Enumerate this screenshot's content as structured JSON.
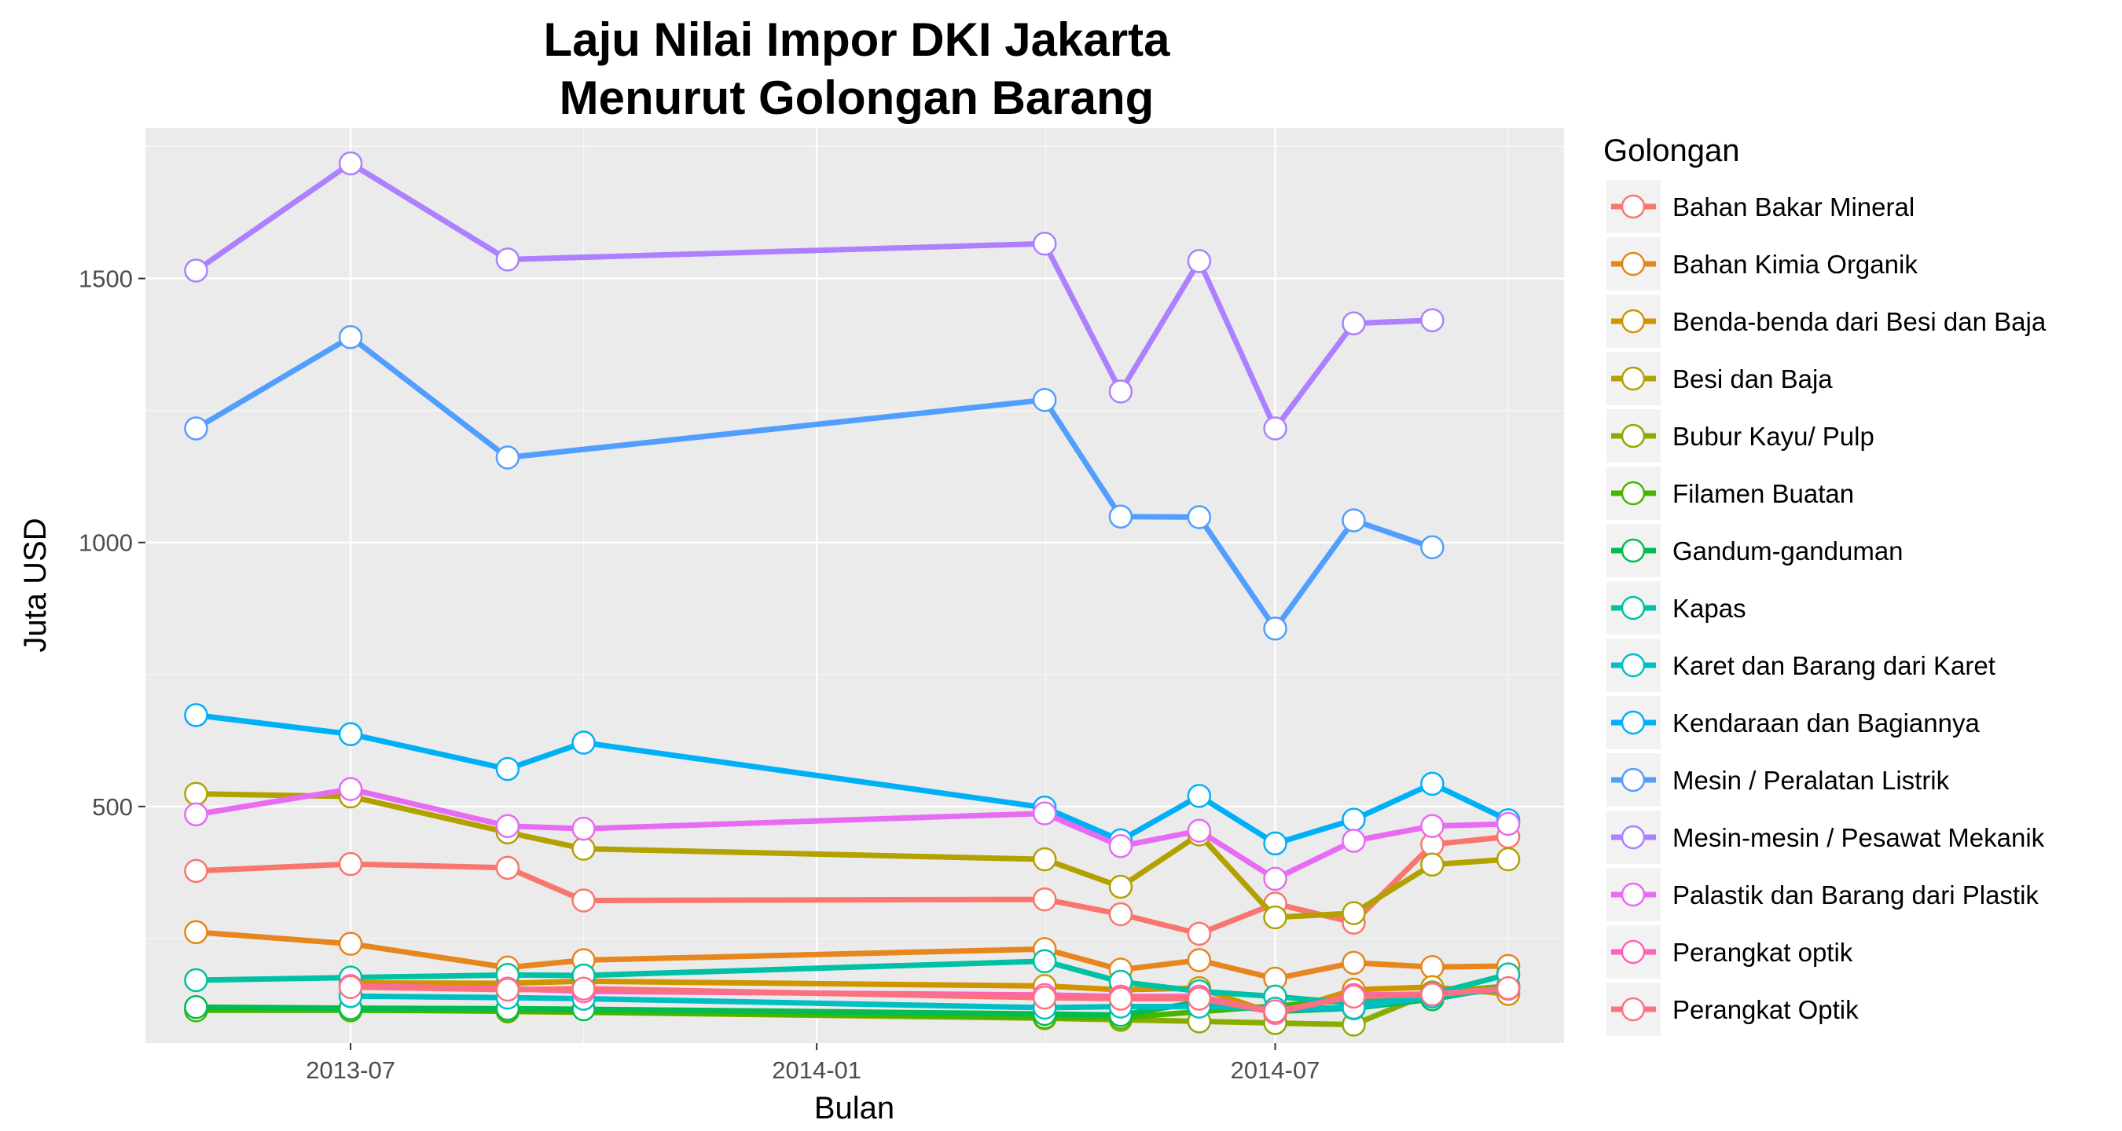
{
  "chart_data": {
    "type": "line",
    "title_line1": "Laju Nilai Impor DKI Jakarta",
    "title_line2": "Menurut Golongan Barang",
    "xlabel": "Bulan",
    "ylabel": "Juta USD",
    "x_ticks": [
      "2013-07",
      "2014-01",
      "2014-07"
    ],
    "y_ticks": [
      500,
      1000,
      1500
    ],
    "xlim": [
      "2013-04-11",
      "2014-10-23"
    ],
    "ylim": [
      52,
      1785
    ],
    "grid": true,
    "legend_title": "Golongan",
    "legend_position": "right",
    "series": [
      {
        "name": "Bahan Bakar Mineral",
        "color": "#F8766D",
        "x": [
          "2013-05",
          "2013-07",
          "2013-09",
          "2013-10",
          "2014-04",
          "2014-05",
          "2014-06",
          "2014-07",
          "2014-08",
          "2014-09",
          "2014-10"
        ],
        "y": [
          378,
          391,
          384,
          322,
          324,
          296,
          259,
          316,
          280,
          428,
          443
        ]
      },
      {
        "name": "Bahan Kimia Organik",
        "color": "#E7851E",
        "x": [
          "2013-05",
          "2013-07",
          "2013-09",
          "2013-10",
          "2014-04",
          "2014-05",
          "2014-06",
          "2014-07",
          "2014-08",
          "2014-09",
          "2014-10"
        ],
        "y": [
          262,
          240,
          195,
          209,
          230,
          191,
          209,
          174,
          204,
          196,
          198
        ]
      },
      {
        "name": "Benda-benda dari Besi dan Baja",
        "color": "#D09400",
        "x": [
          "2013-07",
          "2013-09",
          "2013-10",
          "2014-04",
          "2014-05",
          "2014-06",
          "2014-07",
          "2014-08",
          "2014-09",
          "2014-10"
        ],
        "y": [
          166,
          165,
          169,
          160,
          153,
          156,
          107,
          153,
          158,
          145
        ]
      },
      {
        "name": "Besi dan Baja",
        "color": "#B2A100",
        "x": [
          "2013-05",
          "2013-07",
          "2013-09",
          "2013-10",
          "2014-04",
          "2014-05",
          "2014-06",
          "2014-07",
          "2014-08",
          "2014-09",
          "2014-10"
        ],
        "y": [
          524,
          519,
          451,
          420,
          400,
          348,
          447,
          290,
          298,
          390,
          400
        ]
      },
      {
        "name": "Bubur Kayu/ Pulp",
        "color": "#89AC00",
        "x": [
          "2013-05",
          "2013-07",
          "2013-09",
          "2014-04",
          "2014-05",
          "2014-06",
          "2014-07",
          "2014-08",
          "2014-09",
          "2014-10"
        ],
        "y": [
          117,
          115,
          112,
          99,
          96,
          93,
          90,
          87,
          148,
          160
        ]
      },
      {
        "name": "Filamen Buatan",
        "color": "#45B500",
        "x": [
          "2013-05",
          "2013-07",
          "2013-09",
          "2014-04",
          "2014-05",
          "2014-09",
          "2014-10"
        ],
        "y": [
          114,
          114,
          113,
          101,
          100,
          145,
          155
        ]
      },
      {
        "name": "Gandum-ganduman",
        "color": "#00BC51",
        "x": [
          "2013-05",
          "2013-07",
          "2013-09",
          "2013-10",
          "2014-04",
          "2014-05",
          "2014-06",
          "2014-07",
          "2014-08",
          "2014-09",
          "2014-10"
        ],
        "y": [
          120,
          118,
          117,
          116,
          107,
          105,
          130,
          112,
          118,
          135,
          160
        ]
      },
      {
        "name": "Kapas",
        "color": "#00C1A3",
        "x": [
          "2013-05",
          "2013-07",
          "2013-09",
          "2013-10",
          "2014-04",
          "2014-05",
          "2014-06",
          "2014-07",
          "2014-08",
          "2014-09",
          "2014-10"
        ],
        "y": [
          171,
          176,
          181,
          180,
          207,
          168,
          150,
          140,
          127,
          145,
          182
        ]
      },
      {
        "name": "Karet dan Barang dari Karet",
        "color": "#00BFC4",
        "x": [
          "2013-07",
          "2013-09",
          "2013-10",
          "2014-04",
          "2014-05",
          "2014-06",
          "2014-07",
          "2014-08",
          "2014-09",
          "2014-10"
        ],
        "y": [
          141,
          138,
          136,
          119,
          121,
          121,
          117,
          119,
          140,
          155
        ]
      },
      {
        "name": "Kendaraan dan Bagiannya",
        "color": "#00B0F6",
        "x": [
          "2013-05",
          "2013-07",
          "2013-09",
          "2013-10",
          "2014-04",
          "2014-05",
          "2014-06",
          "2014-07",
          "2014-08",
          "2014-09",
          "2014-10"
        ],
        "y": [
          673,
          637,
          571,
          621,
          498,
          436,
          520,
          430,
          475,
          543,
          474
        ]
      },
      {
        "name": "Mesin / Peralatan Listrik",
        "color": "#529EFF",
        "x": [
          "2013-05",
          "2013-07",
          "2013-09",
          "2014-04",
          "2014-05",
          "2014-06",
          "2014-07",
          "2014-08",
          "2014-09"
        ],
        "y": [
          1216,
          1389,
          1161,
          1270,
          1049,
          1048,
          837,
          1042,
          991
        ]
      },
      {
        "name": "Mesin-mesin / Pesawat Mekanik",
        "color": "#AD80FF",
        "x": [
          "2013-05",
          "2013-07",
          "2013-09",
          "2014-04",
          "2014-05",
          "2014-06",
          "2014-07",
          "2014-08",
          "2014-09"
        ],
        "y": [
          1515,
          1718,
          1536,
          1566,
          1286,
          1533,
          1216,
          1415,
          1421
        ]
      },
      {
        "name": "Palastik dan Barang dari Plastik",
        "color": "#E76BF3",
        "x": [
          "2013-05",
          "2013-07",
          "2013-09",
          "2013-10",
          "2014-04",
          "2014-05",
          "2014-06",
          "2014-07",
          "2014-08",
          "2014-09",
          "2014-10"
        ],
        "y": [
          485,
          533,
          463,
          458,
          487,
          425,
          454,
          363,
          435,
          463,
          467
        ]
      },
      {
        "name": "Perangkat optik",
        "color": "#FF62BC",
        "x": [
          "2013-07",
          "2013-09",
          "2013-10",
          "2014-04",
          "2014-05",
          "2014-06",
          "2014-07",
          "2014-08",
          "2014-09",
          "2014-10"
        ],
        "y": [
          160,
          155,
          150,
          143,
          140,
          140,
          109,
          143,
          145,
          155
        ]
      },
      {
        "name": "Perangkat Optik",
        "color": "#FC717F",
        "x": [
          "2013-07",
          "2013-09",
          "2013-10",
          "2014-04",
          "2014-05",
          "2014-06",
          "2014-07",
          "2014-08",
          "2014-09",
          "2014-10"
        ],
        "y": [
          158,
          153,
          155,
          138,
          136,
          136,
          112,
          140,
          144,
          156
        ]
      }
    ]
  }
}
